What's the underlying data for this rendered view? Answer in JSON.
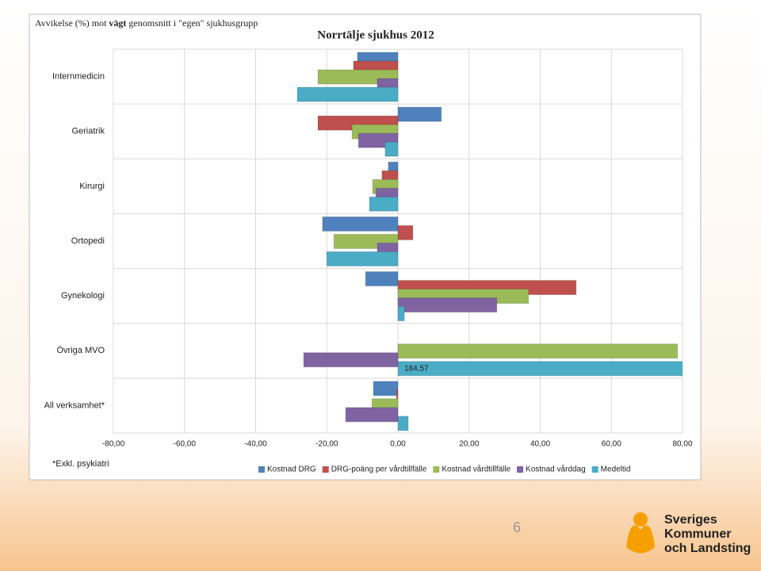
{
  "chart_data": {
    "type": "bar",
    "orientation": "horizontal",
    "subtitle": [
      "Avvikelse (%) mot ",
      "vägt",
      " genomsnitt i \"egen\" sjukhusgrupp"
    ],
    "title": "Norrtälje sjukhus 2012",
    "categories": [
      "Internmedicin",
      "Geriatrik",
      "Kirurgi",
      "Ortopedi",
      "Gynekologi",
      "Övriga MVO",
      "All verksamhet*"
    ],
    "series": [
      {
        "name": "Kostnad DRG",
        "color": "#4f81bd",
        "values": [
          -11.4,
          12.2,
          -2.7,
          -21.2,
          -9.1,
          0,
          -6.9
        ]
      },
      {
        "name": "DRG-poäng per vårdtillfälle",
        "color": "#c0504d",
        "values": [
          -12.5,
          -22.5,
          -4.5,
          4.2,
          50.1,
          0,
          -0.4
        ]
      },
      {
        "name": "Kostnad vårdtillfälle",
        "color": "#9bbb59",
        "values": [
          -22.5,
          -12.9,
          -7.1,
          -18.0,
          36.7,
          78.6,
          -7.3
        ]
      },
      {
        "name": "Kostnad vårddag",
        "color": "#8064a2",
        "values": [
          -5.8,
          -11.1,
          -6.2,
          -5.8,
          27.8,
          -26.5,
          -14.7
        ]
      },
      {
        "name": "Medeltid",
        "color": "#4bacc6",
        "values": [
          -28.3,
          -3.6,
          -8.0,
          -20.0,
          1.8,
          184.57,
          2.9
        ],
        "value_labels": [
          null,
          null,
          null,
          null,
          null,
          "184,57",
          null
        ]
      }
    ],
    "xlim": [
      -80,
      80
    ],
    "xticks": [
      {
        "value": -80,
        "label": "-80,00"
      },
      {
        "value": -60,
        "label": "-60,00"
      },
      {
        "value": -40,
        "label": "-40,00"
      },
      {
        "value": -20,
        "label": "-20,00"
      },
      {
        "value": 0,
        "label": "0,00"
      },
      {
        "value": 20,
        "label": "20,00"
      },
      {
        "value": 40,
        "label": "40,00"
      },
      {
        "value": 60,
        "label": "60,00"
      },
      {
        "value": 80,
        "label": "80,00"
      }
    ],
    "grid": true,
    "legend": "bottom",
    "footnote": "*Exkl. psykiatri"
  },
  "slide": {
    "page_number": "6",
    "logo": [
      "Sveriges",
      "Kommuner",
      "och Landsting"
    ]
  }
}
